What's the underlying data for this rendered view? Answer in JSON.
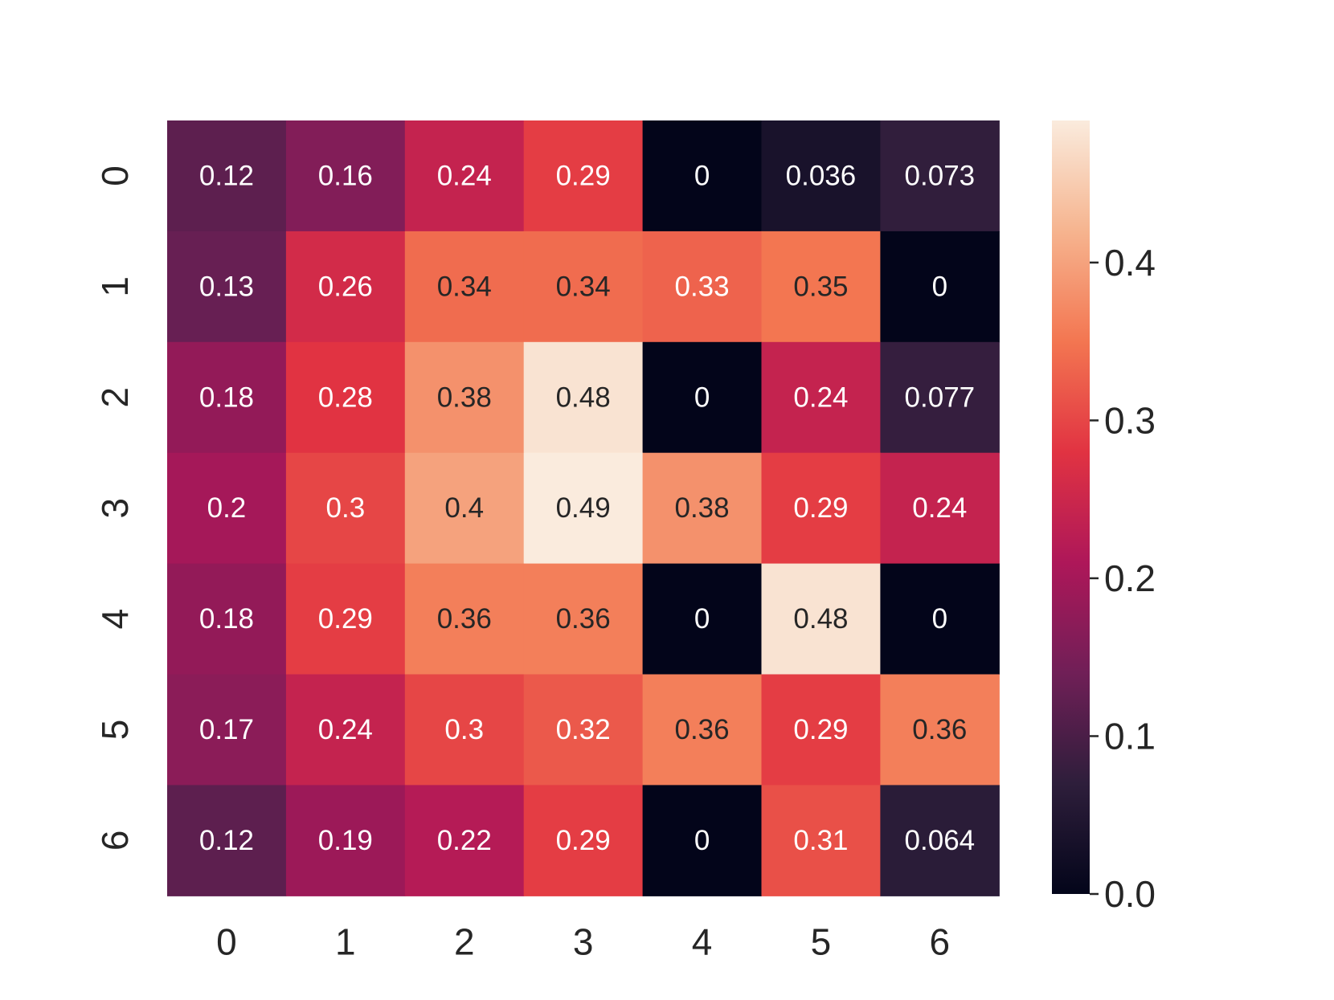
{
  "chart_data": {
    "type": "heatmap",
    "title": "",
    "xlabel": "",
    "ylabel": "",
    "x_categories": [
      "0",
      "1",
      "2",
      "3",
      "4",
      "5",
      "6"
    ],
    "y_categories": [
      "0",
      "1",
      "2",
      "3",
      "4",
      "5",
      "6"
    ],
    "values": [
      [
        0.12,
        0.16,
        0.24,
        0.29,
        0,
        0.036,
        0.073
      ],
      [
        0.13,
        0.26,
        0.34,
        0.34,
        0.33,
        0.35,
        0
      ],
      [
        0.18,
        0.28,
        0.38,
        0.48,
        0,
        0.24,
        0.077
      ],
      [
        0.2,
        0.3,
        0.4,
        0.49,
        0.38,
        0.29,
        0.24
      ],
      [
        0.18,
        0.29,
        0.36,
        0.36,
        0,
        0.48,
        0
      ],
      [
        0.17,
        0.24,
        0.3,
        0.32,
        0.36,
        0.29,
        0.36
      ],
      [
        0.12,
        0.19,
        0.22,
        0.29,
        0,
        0.31,
        0.064
      ]
    ],
    "cell_labels": [
      [
        "0.12",
        "0.16",
        "0.24",
        "0.29",
        "0",
        "0.036",
        "0.073"
      ],
      [
        "0.13",
        "0.26",
        "0.34",
        "0.34",
        "0.33",
        "0.35",
        "0"
      ],
      [
        "0.18",
        "0.28",
        "0.38",
        "0.48",
        "0",
        "0.24",
        "0.077"
      ],
      [
        "0.2",
        "0.3",
        "0.4",
        "0.49",
        "0.38",
        "0.29",
        "0.24"
      ],
      [
        "0.18",
        "0.29",
        "0.36",
        "0.36",
        "0",
        "0.48",
        "0"
      ],
      [
        "0.17",
        "0.24",
        "0.3",
        "0.32",
        "0.36",
        "0.29",
        "0.36"
      ],
      [
        "0.12",
        "0.19",
        "0.22",
        "0.29",
        "0",
        "0.31",
        "0.064"
      ]
    ],
    "colorbar": {
      "vmin": 0,
      "vmax": 0.49,
      "ticks": [
        0.0,
        0.1,
        0.2,
        0.3,
        0.4
      ],
      "tick_labels": [
        "0.0",
        "0.1",
        "0.2",
        "0.3",
        "0.4"
      ],
      "colormap": "rocket",
      "colormap_stops": [
        "#03051a",
        "#2e1e3b",
        "#701f57",
        "#ae1759",
        "#e13342",
        "#f37651",
        "#f6b48f",
        "#faebdd"
      ]
    },
    "annotation_colors": {
      "dark_text": "#262626",
      "light_text": "#ffffff"
    }
  }
}
